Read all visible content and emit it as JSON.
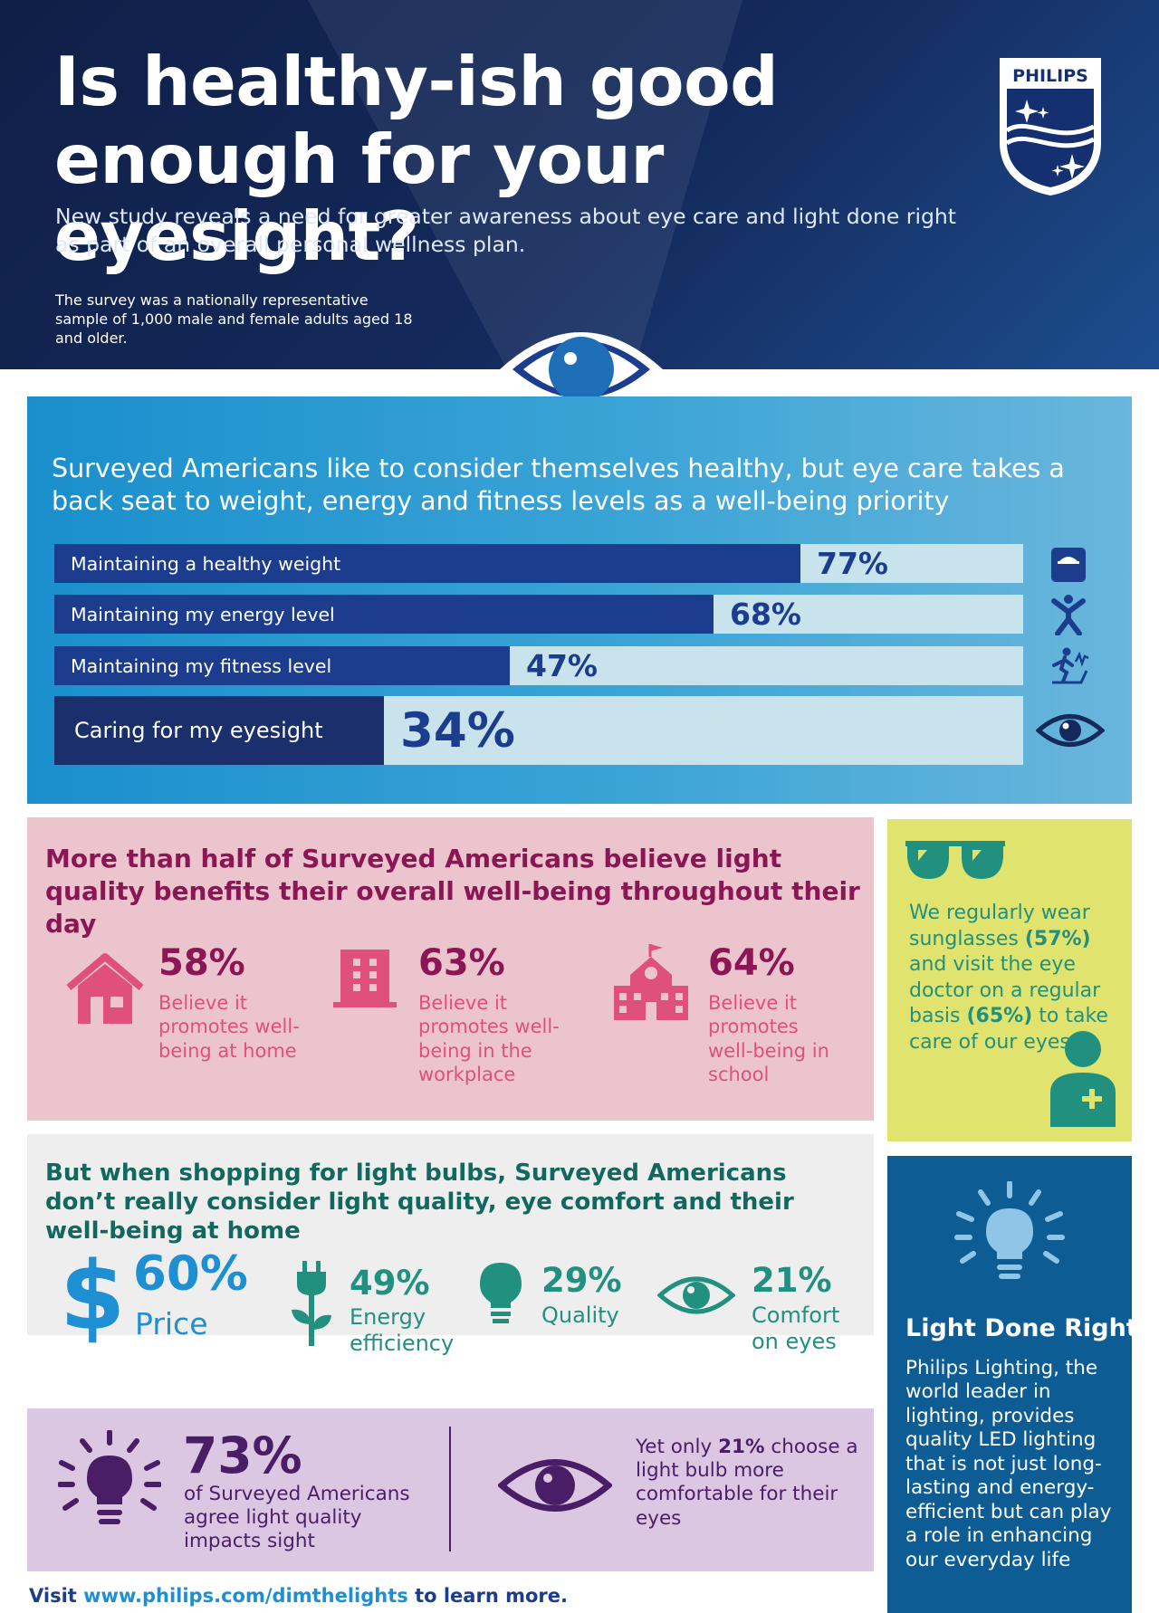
{
  "header": {
    "title": "Is healthy-ish good enough for your eyesight?",
    "subtitle": "New study reveals a need for greater awareness about eye care and light done right as part of an overall personal wellness plan.",
    "survey_note": "The survey was a nationally representative sample of 1,000 male and female adults aged 18 and older.",
    "logo_text": "PHILIPS"
  },
  "priorities": {
    "heading": "Surveyed Americans like to consider themselves healthy, but eye care takes a back seat to weight, energy and fitness levels as a well-being priority",
    "items": [
      {
        "label": "Maintaining a healthy weight",
        "pct": "77%",
        "value": 0.77,
        "icon": "scale-icon"
      },
      {
        "label": "Maintaining my energy level",
        "pct": "68%",
        "value": 0.68,
        "icon": "person-jumping-icon"
      },
      {
        "label": "Maintaining my fitness level",
        "pct": "47%",
        "value": 0.47,
        "icon": "treadmill-icon"
      },
      {
        "label": "Caring for my eyesight",
        "pct": "34%",
        "value": 0.34,
        "icon": "eye-icon"
      }
    ]
  },
  "light_quality": {
    "heading": "More than half of Surveyed Americans believe light quality benefits their overall well-being throughout their day",
    "items": [
      {
        "pct": "58%",
        "desc": "Believe it promotes well-being at home",
        "icon": "house-icon"
      },
      {
        "pct": "63%",
        "desc": "Believe it promotes well-being in the workplace",
        "icon": "office-building-icon"
      },
      {
        "pct": "64%",
        "desc": "Believe it promotes well-being in school",
        "icon": "school-icon"
      }
    ]
  },
  "sunglasses": {
    "text_a": "We regularly wear sunglasses ",
    "pct_a": "(57%)",
    "text_b": " and visit the eye doctor on a regular basis ",
    "pct_b": "(65%)",
    "text_c": " to take care of our eyes"
  },
  "shopping": {
    "heading": "But when shopping for light bulbs, Surveyed Americans don’t really consider light quality, eye comfort and their well-being at home",
    "items": [
      {
        "pct": "60%",
        "label": "Price",
        "icon": "dollar-icon"
      },
      {
        "pct": "49%",
        "label": "Energy efficiency",
        "icon": "plug-plant-icon"
      },
      {
        "pct": "29%",
        "label": "Quality",
        "icon": "lightbulb-icon"
      },
      {
        "pct": "21%",
        "label": "Comfort on eyes",
        "icon": "eye-icon"
      }
    ]
  },
  "light_done_right": {
    "title": "Light Done Right",
    "body": "Philips Lighting, the world leader in lighting, provides quality LED lighting that is not just long-lasting and energy-efficient but can play a role in enhancing our everyday life"
  },
  "sight": {
    "pct": "73%",
    "desc": "of Surveyed Americans agree light quality impacts sight",
    "yet_a": "Yet only ",
    "yet_pct": "21%",
    "yet_b": " choose a light bulb more comfortable for their eyes"
  },
  "footer": {
    "visit": "Visit ",
    "url": "www.philips.com/dimthelights",
    "rest": " to learn more."
  },
  "colors": {
    "navy": "#0f1f47",
    "bar_dark": "#1c3d8e",
    "bar_track": "#c9e3ec",
    "panel_blue": "#1a8fcc",
    "pink_bg": "#ebc4ce",
    "magenta": "#8b1555",
    "pink_text": "#e0507c",
    "lime_bg": "#e0e46f",
    "teal": "#22907f",
    "gray_bg": "#eeeeee",
    "deep_blue": "#0e5c94",
    "lavender": "#dbc7e2",
    "purple": "#4a1e66"
  }
}
